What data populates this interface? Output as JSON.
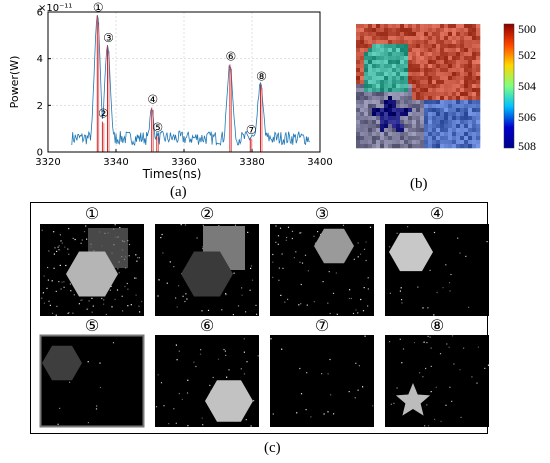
{
  "figure_a": {
    "caption": "(a)"
  },
  "figure_b": {
    "caption": "(b)"
  },
  "figure_c": {
    "caption": "(c)",
    "tiles": [
      {
        "label": "①",
        "shape": "hexagon-center"
      },
      {
        "label": "②",
        "shape": "hexagon-center-dim"
      },
      {
        "label": "③",
        "shape": "hexagon-topright"
      },
      {
        "label": "④",
        "shape": "hexagon-left"
      },
      {
        "label": "⑤",
        "shape": "hexagon-faint-left"
      },
      {
        "label": "⑥",
        "shape": "hexagon-bottomright"
      },
      {
        "label": "⑦",
        "shape": "empty"
      },
      {
        "label": "⑧",
        "shape": "star-bottomleft"
      }
    ]
  },
  "chart_data": [
    {
      "type": "line",
      "xlabel": "Times(ns)",
      "ylabel": "Power(W)",
      "y_multiplier": "×10⁻¹¹",
      "xlim": [
        3320,
        3400
      ],
      "ylim": [
        0,
        6
      ],
      "xticks": [
        3320,
        3340,
        3360,
        3380,
        3400
      ],
      "yticks": [
        0,
        2,
        4,
        6
      ],
      "grid": true,
      "series_color": "#1f77b4",
      "stem_color": "#d62728",
      "peaks": [
        {
          "label": "①",
          "x": 3334.5,
          "y": 5.85
        },
        {
          "label": "②",
          "x": 3336.0,
          "y": 1.3
        },
        {
          "label": "③",
          "x": 3337.5,
          "y": 4.55
        },
        {
          "label": "④",
          "x": 3350.5,
          "y": 1.9
        },
        {
          "label": "⑤",
          "x": 3352.0,
          "y": 0.7
        },
        {
          "label": "⑥",
          "x": 3373.5,
          "y": 3.75
        },
        {
          "label": "⑦",
          "x": 3379.5,
          "y": 0.6
        },
        {
          "label": "⑧",
          "x": 3382.5,
          "y": 2.9
        }
      ],
      "noise_floor": [
        0.3,
        0.9
      ],
      "signal_range": [
        3327,
        3397
      ]
    },
    {
      "type": "heatmap",
      "colorbar_ticks": [
        500,
        502,
        504,
        506,
        508
      ],
      "colorbar_colors": [
        "#8b0000",
        "#ff4500",
        "#ffd700",
        "#7fff7f",
        "#00bfff",
        "#0000cd",
        "#00008b"
      ]
    }
  ]
}
